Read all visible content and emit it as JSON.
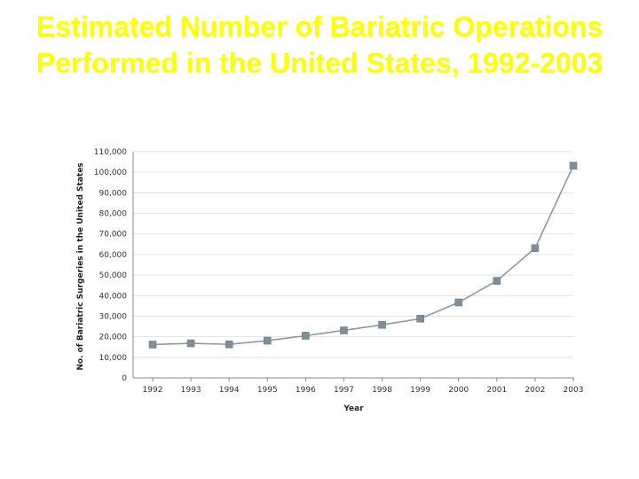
{
  "slide": {
    "title": "Estimated Number of Bariatric Operations Performed in the United States, 1992-2003"
  },
  "chart_data": {
    "type": "line",
    "title": "Estimated Number of Bariatric Operations Performed in the United States, 1992-2003",
    "xlabel": "Year",
    "ylabel": "No. of Bariatric Surgeries in the United States",
    "categories": [
      "1992",
      "1993",
      "1994",
      "1995",
      "1996",
      "1997",
      "1998",
      "1999",
      "2000",
      "2001",
      "2002",
      "2003"
    ],
    "series": [
      {
        "values": [
          16200,
          16800,
          16300,
          18100,
          20500,
          23100,
          25800,
          28800,
          36700,
          47200,
          63100,
          103200
        ]
      }
    ],
    "ylim": [
      0,
      110000
    ],
    "yticks": [
      0,
      10000,
      20000,
      30000,
      40000,
      50000,
      60000,
      70000,
      80000,
      90000,
      100000,
      110000
    ],
    "ytick_labels": [
      "0",
      "10,000",
      "20,000",
      "30,000",
      "40,000",
      "50,000",
      "60,000",
      "70,000",
      "80,000",
      "90,000",
      "100,000",
      "110,000"
    ],
    "grid": true,
    "line_color": "#8a9aa6",
    "marker_color": "#7f8e99"
  }
}
